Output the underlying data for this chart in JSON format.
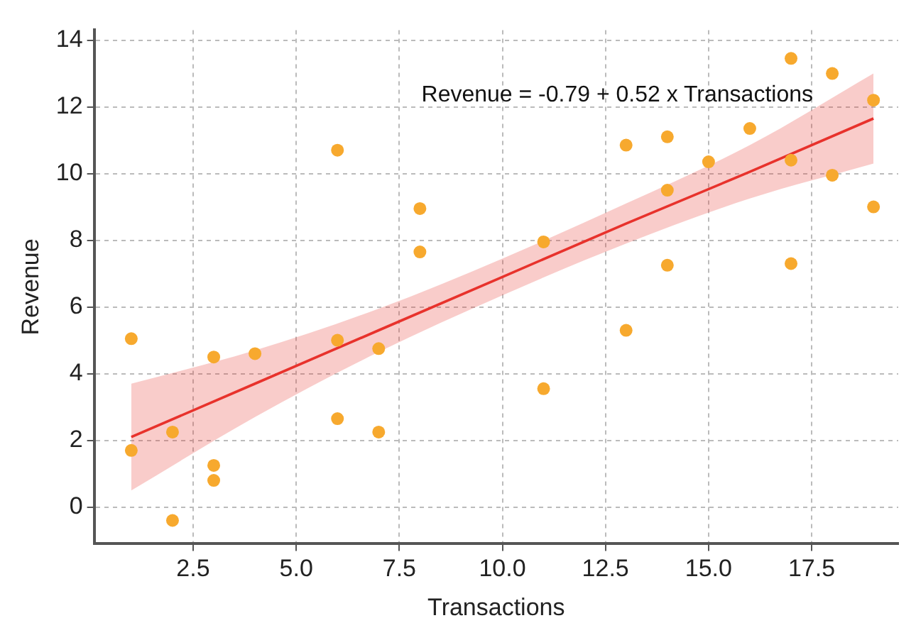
{
  "chart_data": {
    "type": "scatter",
    "xlabel": "Transactions",
    "ylabel": "Revenue",
    "annotations": [
      "Revenue = -0.79 + 0.52 x Transactions"
    ],
    "xlim": [
      0.1,
      19.6
    ],
    "xticks": [
      {
        "value": 2.5,
        "label": "2.5"
      },
      {
        "value": 5,
        "label": "5.0"
      },
      {
        "value": 7.5,
        "label": "7.5"
      },
      {
        "value": 10,
        "label": "10.0"
      },
      {
        "value": 12.5,
        "label": "12.5"
      },
      {
        "value": 15,
        "label": "15.0"
      },
      {
        "value": 17.5,
        "label": "17.5"
      }
    ],
    "ylim": [
      -1.1,
      14.3
    ],
    "yticks": [
      0,
      2,
      4,
      6,
      8,
      10,
      12,
      14
    ],
    "grid": true,
    "legend": false,
    "marker": "circle",
    "series": [
      {
        "color": "#f7a92e",
        "x": [
          1,
          1,
          2,
          2,
          3,
          3,
          3,
          4,
          6,
          6,
          6,
          7,
          7,
          8,
          8,
          11,
          11,
          13,
          13,
          14,
          14,
          14,
          15,
          16,
          17,
          17,
          17,
          18,
          18,
          19,
          19
        ],
        "values": [
          5.05,
          1.7,
          2.25,
          -0.4,
          4.5,
          1.25,
          0.8,
          4.6,
          10.7,
          5.0,
          2.65,
          4.75,
          2.25,
          8.95,
          7.65,
          7.95,
          3.55,
          10.85,
          5.3,
          11.1,
          9.5,
          7.25,
          10.35,
          11.35,
          13.45,
          10.4,
          7.3,
          13.0,
          9.95,
          12.2,
          9.0
        ]
      },
      {
        "type": "line",
        "color": "#e8322c",
        "marker": "none",
        "x": [
          1,
          4,
          7,
          10,
          13,
          16,
          19
        ],
        "values": [
          2.1,
          3.7,
          5.3,
          6.9,
          8.5,
          10.05,
          11.65
        ],
        "lower": [
          0.5,
          2.7,
          4.65,
          6.35,
          7.9,
          9.25,
          10.3
        ],
        "upper": [
          3.7,
          4.7,
          5.95,
          7.45,
          9.1,
          10.85,
          13.0
        ]
      }
    ]
  }
}
